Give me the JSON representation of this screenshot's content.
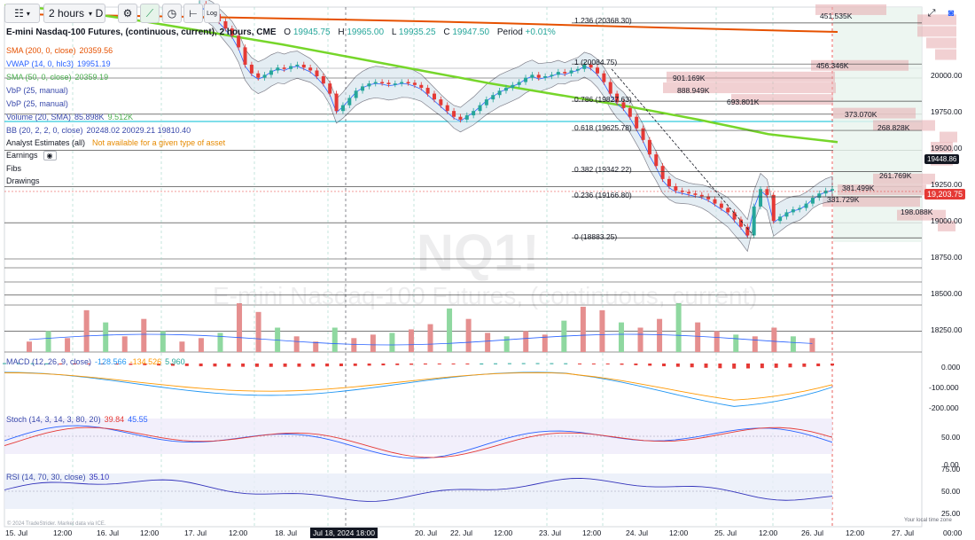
{
  "toolbar": {
    "interval": "2 hours",
    "d_label": "D",
    "log_label": "Log"
  },
  "colors": {
    "sma200": "#e65100",
    "sma50": "#76d62a",
    "vwap": "#2962ff",
    "bb_fill": "#cfe0ea",
    "up": "#8fd8a0",
    "down": "#e58f8f",
    "candle_up": "#26a69a",
    "candle_down": "#e53935",
    "macd_line": "#2196f3",
    "signal_line": "#ff9800",
    "stoch_k": "#2962ff",
    "stoch_d": "#e53935",
    "rsi": "#3333bb",
    "cyan_line": "#00bcd4"
  },
  "legend": {
    "symbol_title": "E-mini Nasdaq-100 Futures, (continuous, current), 2 hours, CME",
    "o_label": "O",
    "o_value": "19945.75",
    "h_label": "H",
    "h_value": "19965.00",
    "l_label": "L",
    "l_value": "19935.25",
    "c_label": "C",
    "c_value": "19947.50",
    "period_label": "Period",
    "period_value": "+0.01%",
    "rows": [
      {
        "label": "SMA (200, 0, close)",
        "value": "20359.56"
      },
      {
        "label": "VWAP (14, 0, hlc3)",
        "value": "19951.19"
      },
      {
        "label": "SMA (50, 0, close)",
        "value": "20359.19"
      },
      {
        "label": "VbP (25, manual)",
        "value": ""
      },
      {
        "label": "VbP (25, manual)",
        "value": ""
      },
      {
        "label": "Volume (20, SMA)",
        "value": "85.898K",
        "value2": "9.512K"
      },
      {
        "label": "BB (20, 2, 2, 0, close)",
        "value": "20248.02 20029.21 19810.40"
      },
      {
        "label": "Analyst Estimates (all)",
        "value": "Not available for a given type of asset"
      },
      {
        "label": "Earnings",
        "value": ""
      },
      {
        "label": "Fibs",
        "value": ""
      },
      {
        "label": "Drawings",
        "value": ""
      }
    ]
  },
  "watermark": {
    "symbol": "NQ1!",
    "name": "E-mini Nasdaq-100 Futures, (continuous, current)"
  },
  "fib_levels": [
    {
      "label": "1.236 (20368.30)",
      "price": 20368.3
    },
    {
      "label": "1 (20084.75)",
      "price": 20084.75
    },
    {
      "label": "0.786 (19827.63)",
      "price": 19827.63
    },
    {
      "label": "0.618 (19625.78)",
      "price": 19625.78
    },
    {
      "label": "0.382 (19342.22)",
      "price": 19342.22
    },
    {
      "label": "0.236 (19166.80)",
      "price": 19166.8
    },
    {
      "label": "0 (18883.25)",
      "price": 18883.25
    }
  ],
  "vbp_labels": [
    {
      "label": "451.535K",
      "price": 20460
    },
    {
      "label": "456.346K",
      "price": 20075
    },
    {
      "label": "901.169K",
      "price": 19995
    },
    {
      "label": "888.949K",
      "price": 19920
    },
    {
      "label": "693.801K",
      "price": 19840
    },
    {
      "label": "373.070K",
      "price": 19745
    },
    {
      "label": "268.828K",
      "price": 19660
    },
    {
      "label": "261.769K",
      "price": 19290
    },
    {
      "label": "381.499K",
      "price": 19215
    },
    {
      "label": "331.729K",
      "price": 19135
    },
    {
      "label": "198.088K",
      "price": 19040
    }
  ],
  "price_axis": {
    "ticks": [
      "20000.00",
      "19750.00",
      "19500.00",
      "19250.00",
      "19000.00",
      "18750.00",
      "18500.00",
      "18250.00"
    ],
    "tick_values": [
      20000,
      19750,
      19500,
      19250,
      19000,
      18750,
      18500,
      18250
    ],
    "tag_dark_label": "19448.86",
    "tag_dark_value": 19448.86,
    "tag_red_label": "19,203.75",
    "tag_red_value": 19203.75
  },
  "macd_axis": {
    "ticks": [
      "0.000",
      "-100.000",
      "-200.000"
    ]
  },
  "stoch_axis": {
    "ticks": [
      "50.00",
      "0.00"
    ]
  },
  "rsi_axis": {
    "ticks": [
      "75.00",
      "50.00",
      "25.00"
    ]
  },
  "time_axis": {
    "labels": [
      "15. Jul",
      "12:00",
      "16. Jul",
      "12:00",
      "17. Jul",
      "12:00",
      "18. Jul",
      "12:00",
      "20. Jul",
      "22. Jul",
      "12:00",
      "23. Jul",
      "12:00",
      "24. Jul",
      "12:00",
      "25. Jul",
      "12:00",
      "26. Jul",
      "12:00",
      "27. Jul",
      "00:00"
    ],
    "cursor_label": "Jul 18, 2024 18:00"
  },
  "macd_legend": {
    "label": "MACD (12, 26, 9, close)",
    "v1": "-128.566",
    "v2": "-134.526",
    "v3": "5.960"
  },
  "stoch_legend": {
    "label": "Stoch (14, 3, 14, 3, 80, 20)",
    "v1": "39.84",
    "v2": "45.55"
  },
  "rsi_legend": {
    "label": "RSI (14, 70, 30, close)",
    "v1": "35.10"
  },
  "footer": {
    "copyright": "© 2024 TradeStrider. Market data via ICE.",
    "timezone": "Your local time zone"
  },
  "chart_data": {
    "type": "candlestick",
    "title": "E-mini Nasdaq-100 Futures, (continuous, current), 2 hours, CME",
    "ylim": [
      18150,
      20500
    ],
    "closes": [
      20500,
      20460,
      20430,
      20380,
      20330,
      20280,
      20200,
      20080,
      20020,
      19990,
      20010,
      20040,
      20060,
      20050,
      20070,
      20080,
      20060,
      20040,
      20000,
      19950,
      19880,
      19760,
      19800,
      19850,
      19900,
      19930,
      19950,
      19960,
      19955,
      19945,
      19950,
      19960,
      19955,
      19940,
      19920,
      19880,
      19840,
      19800,
      19760,
      19720,
      19700,
      19730,
      19760,
      19800,
      19840,
      19870,
      19900,
      19920,
      19940,
      19960,
      19990,
      20010,
      19990,
      20000,
      20010,
      20030,
      20020,
      20040,
      20050,
      20080,
      20060,
      20020,
      19960,
      19880,
      19820,
      19780,
      19720,
      19640,
      19560,
      19460,
      19380,
      19290,
      19240,
      19210,
      19200,
      19190,
      19180,
      19170,
      19150,
      19120,
      19090,
      19060,
      19010,
      18960,
      18900,
      19100,
      19220,
      19180,
      19000,
      19030,
      19060,
      19080,
      19090,
      19120,
      19160,
      19190,
      19210,
      19220
    ],
    "sma200": [
      20430,
      20422,
      20413,
      20403,
      20392,
      20380,
      20366,
      20350,
      20335,
      20320,
      20306
    ],
    "sma50": [
      20490,
      20450,
      20380,
      20300,
      20220,
      20130,
      20040,
      19950,
      19870,
      19790,
      19700,
      19600,
      19545
    ],
    "volume": [
      30,
      60,
      40,
      120,
      85,
      45,
      95,
      60,
      30,
      40,
      55,
      140,
      115,
      70,
      45,
      30,
      70,
      40,
      50,
      55,
      65,
      80,
      125,
      95,
      55,
      45,
      60,
      50,
      90,
      130,
      120,
      85,
      70,
      95,
      140,
      85,
      60,
      50,
      45,
      70,
      45,
      40
    ],
    "rsi_range": [
      0,
      100
    ],
    "stoch_range": [
      0,
      100
    ],
    "macd_range": [
      -210,
      20
    ]
  }
}
